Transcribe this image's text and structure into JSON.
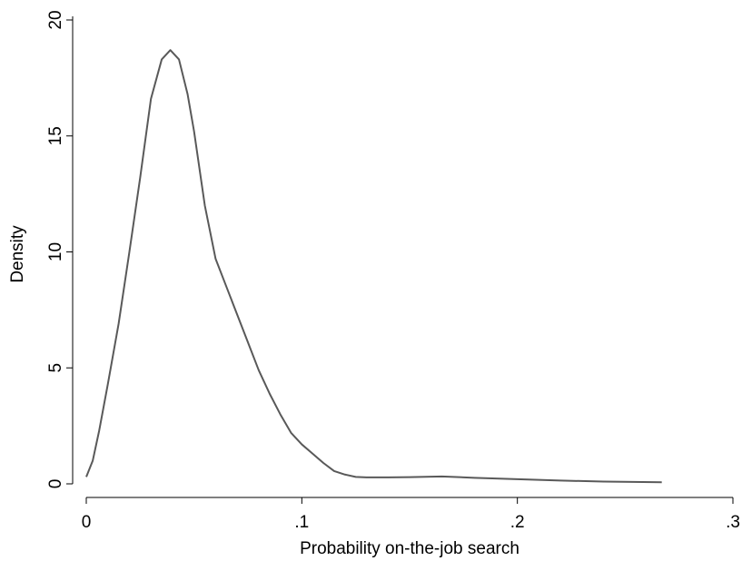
{
  "chart_data": {
    "type": "line",
    "xlabel": "Probability on-the-job search",
    "ylabel": "Density",
    "x": [
      0,
      0.003,
      0.006,
      0.01,
      0.015,
      0.02,
      0.025,
      0.03,
      0.035,
      0.039,
      0.043,
      0.047,
      0.05,
      0.055,
      0.06,
      0.065,
      0.07,
      0.075,
      0.08,
      0.085,
      0.09,
      0.095,
      0.1,
      0.105,
      0.11,
      0.115,
      0.12,
      0.125,
      0.13,
      0.14,
      0.15,
      0.165,
      0.18,
      0.2,
      0.22,
      0.24,
      0.267
    ],
    "series": [
      {
        "color": "#595959",
        "values": [
          0.3,
          1.0,
          2.3,
          4.3,
          6.9,
          10.0,
          13.2,
          16.6,
          18.3,
          18.7,
          18.3,
          16.8,
          15.2,
          12.0,
          9.7,
          8.5,
          7.3,
          6.1,
          4.9,
          3.9,
          3.0,
          2.2,
          1.7,
          1.3,
          0.9,
          0.55,
          0.4,
          0.3,
          0.28,
          0.28,
          0.29,
          0.32,
          0.26,
          0.2,
          0.14,
          0.1,
          0.07
        ]
      }
    ],
    "xlim": [
      0,
      0.3
    ],
    "xticks": [
      0,
      {
        "value": 0.1,
        "label": ".1"
      },
      {
        "value": 0.2,
        "label": ".2"
      },
      {
        "value": 0.3,
        "label": ".3"
      }
    ],
    "ylim": [
      0,
      20
    ],
    "yticks": [
      0,
      5,
      10,
      15,
      20
    ]
  }
}
